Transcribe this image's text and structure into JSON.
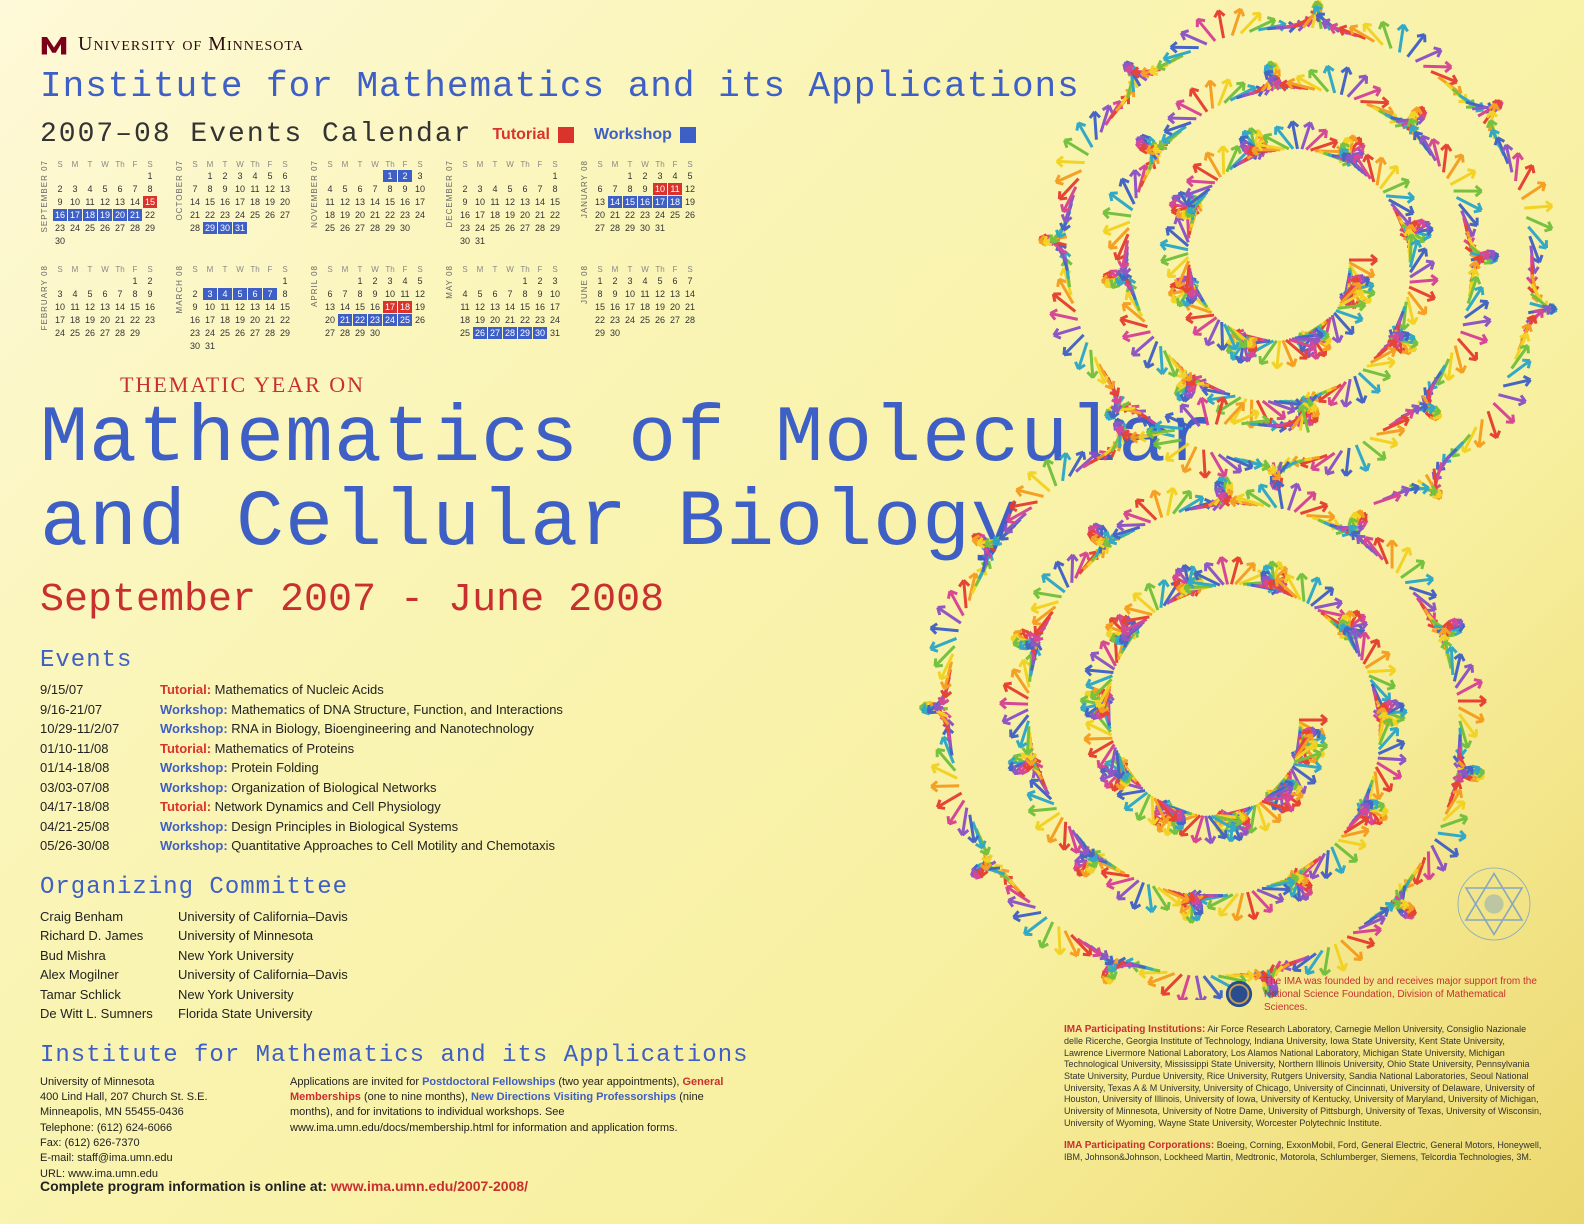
{
  "colors": {
    "tutorial": "#d9332b",
    "workshop": "#3e5fc6",
    "red_accent": "#c83030",
    "blue_accent": "#3e5fc6",
    "bg_light": "#fef9d8",
    "bg_dark": "#ecd870"
  },
  "university_name": "University of Minnesota",
  "institute": "Institute for Mathematics and its Applications",
  "calendar_title": "2007–08 Events Calendar",
  "legend": {
    "tutorial": "Tutorial",
    "workshop": "Workshop"
  },
  "thematic_label": "THEMATIC YEAR ON",
  "main_title_l1": "Mathematics of Molecular",
  "main_title_l2": "and Cellular Biology",
  "date_range": "September 2007 - June 2008",
  "events_heading": "Events",
  "events": [
    {
      "date": "9/15/07",
      "type": "Tutorial:",
      "type_color": "#d9332b",
      "title": "Mathematics of Nucleic Acids"
    },
    {
      "date": "9/16-21/07",
      "type": "Workshop:",
      "type_color": "#3e5fc6",
      "title": "Mathematics of DNA Structure, Function, and Interactions"
    },
    {
      "date": "10/29-11/2/07",
      "type": "Workshop:",
      "type_color": "#3e5fc6",
      "title": "RNA in Biology, Bioengineering and Nanotechnology"
    },
    {
      "date": "01/10-11/08",
      "type": "Tutorial:",
      "type_color": "#d9332b",
      "title": "Mathematics of Proteins"
    },
    {
      "date": "01/14-18/08",
      "type": "Workshop:",
      "type_color": "#3e5fc6",
      "title": "Protein Folding"
    },
    {
      "date": "03/03-07/08",
      "type": "Workshop:",
      "type_color": "#3e5fc6",
      "title": "Organization of Biological Networks"
    },
    {
      "date": "04/17-18/08",
      "type": "Tutorial:",
      "type_color": "#d9332b",
      "title": "Network Dynamics and Cell Physiology"
    },
    {
      "date": "04/21-25/08",
      "type": "Workshop:",
      "type_color": "#3e5fc6",
      "title": "Design Principles in Biological Systems"
    },
    {
      "date": "05/26-30/08",
      "type": "Workshop:",
      "type_color": "#3e5fc6",
      "title": "Quantitative Approaches to Cell Motility and Chemotaxis"
    }
  ],
  "committee_heading": "Organizing Committee",
  "committee": [
    {
      "name": "Craig Benham",
      "affil": "University of California–Davis"
    },
    {
      "name": "Richard D. James",
      "affil": "University of Minnesota"
    },
    {
      "name": "Bud Mishra",
      "affil": "New York University"
    },
    {
      "name": "Alex Mogilner",
      "affil": "University of California–Davis"
    },
    {
      "name": "Tamar Schlick",
      "affil": "New York University"
    },
    {
      "name": "De Witt L. Sumners",
      "affil": "Florida State University"
    }
  ],
  "institute_repeat": "Institute for Mathematics and its Applications",
  "contact": {
    "l1": "University of Minnesota",
    "l2": "400 Lind Hall, 207 Church St. S.E.",
    "l3": "Minneapolis, MN 55455-0436",
    "l4": "Telephone: (612) 624-6066",
    "l5": "Fax: (612) 626-7370",
    "l6": "E-mail: staff@ima.umn.edu",
    "l7": "URL: www.ima.umn.edu"
  },
  "apps_text_pre": "Applications are invited for ",
  "apps_link1": "Postdoctoral Fellowships",
  "apps_text_mid1": " (two year appointments), ",
  "apps_link2": "General Memberships",
  "apps_text_mid2": " (one to nine months), ",
  "apps_link3": "New Directions Visiting Professorships",
  "apps_text_end": " (nine months), and for invitations to individual workshops. See www.ima.umn.edu/docs/membership.html for information and application forms.",
  "footer_label": "Complete program information is online at:  ",
  "footer_url": "www.ima.umn.edu/2007-2008/",
  "nsf_note": "The IMA was founded by and receives major support from the National Science Foundation, Division of Mathematical Sciences.",
  "inst_head": "IMA Participating Institutions:",
  "inst_body": "Air Force Research Laboratory, Carnegie Mellon University, Consiglio Nazionale delle Ricerche, Georgia Institute of Technology, Indiana University, Iowa State University, Kent State University, Lawrence Livermore National Laboratory, Los Alamos National Laboratory, Michigan State University, Michigan Technological University, Mississippi State University, Northern Illinois University, Ohio State University, Pennsylvania State University, Purdue University, Rice University, Rutgers University, Sandia National Laboratories, Seoul National University, Texas A & M University, University of Chicago, University of Cincinnati, University of Delaware, University of Houston, University of Illinois, University of Iowa, University of Kentucky, University of Maryland, University of Michigan, University of Minnesota, University of Notre Dame, University of Pittsburgh, University of Texas, University of Wisconsin, University of Wyoming, Wayne State University, Worcester Polytechnic Institute.",
  "corp_head": "IMA Participating Corporations:",
  "corp_body": "Boeing, Corning, ExxonMobil, Ford, General Electric, General Motors, Honeywell, IBM, Johnson&Johnson, Lockheed Martin, Medtronic, Motorola, Schlumberger, Siemens, Telcordia Technologies, 3M.",
  "calendar": {
    "day_headers": [
      "S",
      "M",
      "T",
      "W",
      "Th",
      "F",
      "S"
    ],
    "months": [
      {
        "label": "SEPTEMBER 07",
        "start": 6,
        "days": 30,
        "tut": [
          15
        ],
        "wk": [
          16,
          17,
          18,
          19,
          20,
          21
        ]
      },
      {
        "label": "OCTOBER 07",
        "start": 1,
        "days": 31,
        "tut": [],
        "wk": [
          29,
          30,
          31
        ]
      },
      {
        "label": "NOVEMBER 07",
        "start": 4,
        "days": 30,
        "tut": [],
        "wk": [
          1,
          2
        ]
      },
      {
        "label": "DECEMBER 07",
        "start": 6,
        "days": 31,
        "tut": [],
        "wk": []
      },
      {
        "label": "JANUARY 08",
        "start": 2,
        "days": 31,
        "tut": [
          10,
          11
        ],
        "wk": [
          14,
          15,
          16,
          17,
          18
        ]
      },
      {
        "label": "FEBRUARY 08",
        "start": 5,
        "days": 29,
        "tut": [],
        "wk": []
      },
      {
        "label": "MARCH 08",
        "start": 6,
        "days": 31,
        "tut": [],
        "wk": [
          3,
          4,
          5,
          6,
          7
        ]
      },
      {
        "label": "APRIL 08",
        "start": 2,
        "days": 30,
        "tut": [
          17,
          18
        ],
        "wk": [
          21,
          22,
          23,
          24,
          25
        ]
      },
      {
        "label": "MAY 08",
        "start": 4,
        "days": 31,
        "tut": [],
        "wk": [
          26,
          27,
          28,
          29,
          30
        ]
      },
      {
        "label": "JUNE 08",
        "start": 0,
        "days": 30,
        "tut": [],
        "wk": []
      }
    ]
  }
}
